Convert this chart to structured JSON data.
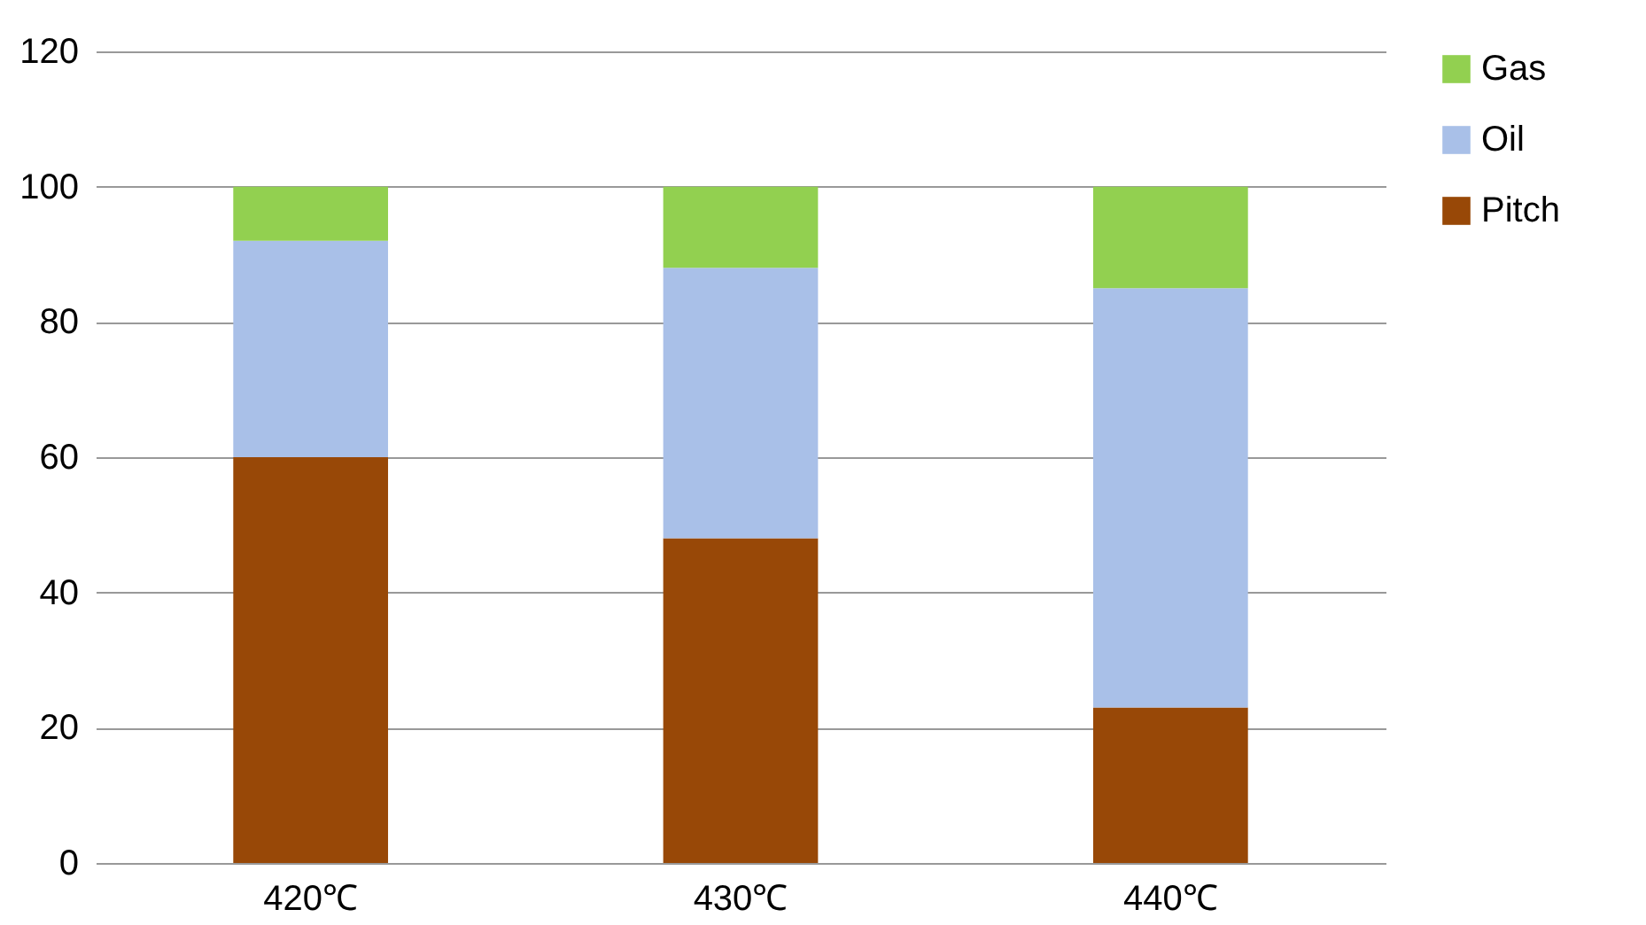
{
  "chart_data": {
    "type": "bar",
    "stacked": true,
    "categories": [
      "420℃",
      "430℃",
      "440℃"
    ],
    "series": [
      {
        "name": "Pitch",
        "color": "#984807",
        "values": [
          60,
          48,
          23
        ]
      },
      {
        "name": "Oil",
        "color": "#a9c0e8",
        "values": [
          32,
          40,
          62
        ]
      },
      {
        "name": "Gas",
        "color": "#92d050",
        "values": [
          8,
          12,
          15
        ]
      }
    ],
    "ylim": [
      0,
      120
    ],
    "yticks": [
      0,
      20,
      40,
      60,
      80,
      100,
      120
    ],
    "grid": "y",
    "legend": "right"
  }
}
